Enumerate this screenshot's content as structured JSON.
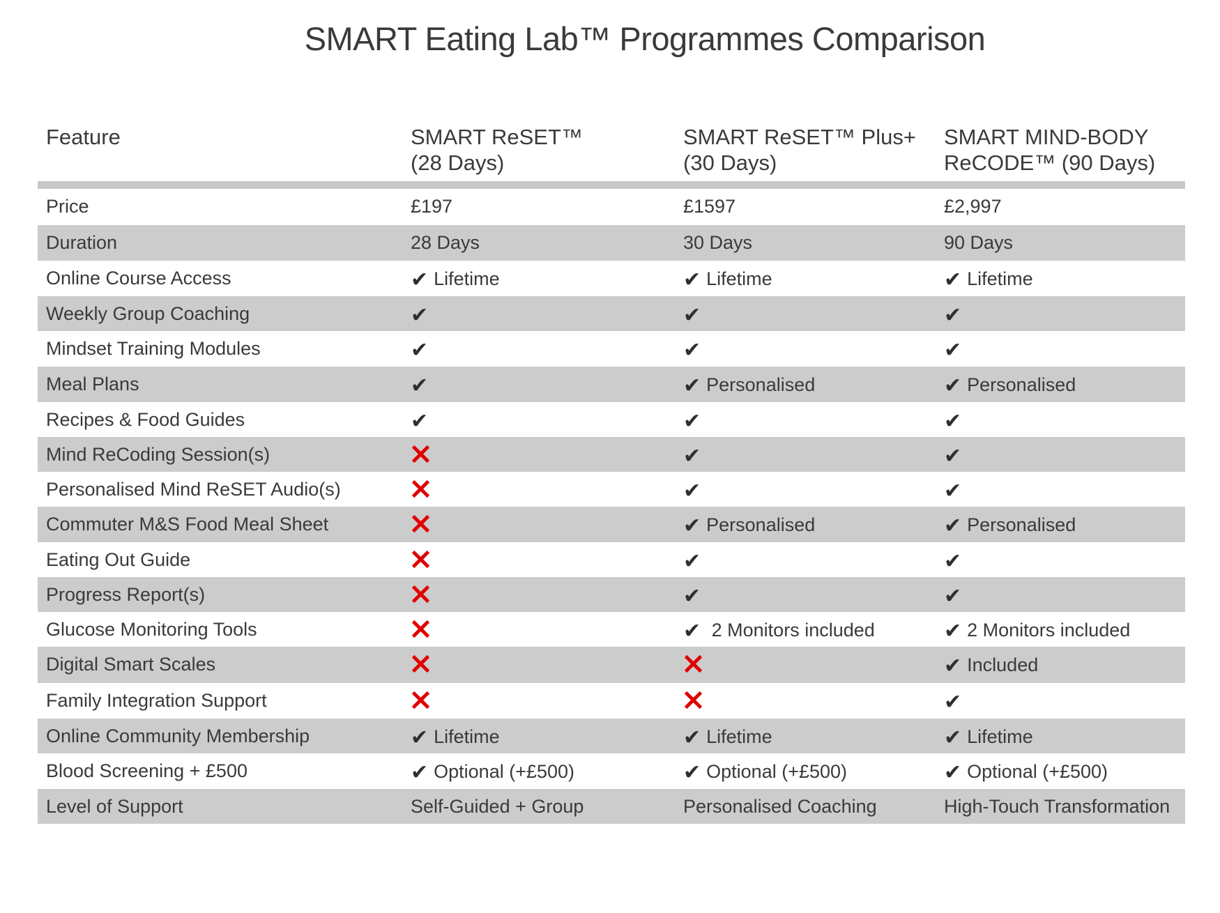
{
  "title": "SMART Eating Lab™ Programmes Comparison",
  "header": {
    "feature": "Feature",
    "col1_line1": "SMART ReSET™",
    "col1_line2": "(28 Days)",
    "col2_line1": "SMART ReSET™ Plus+",
    "col2_line2": "(30 Days)",
    "col3_line1": "SMART MIND-BODY",
    "col3_line2": "ReCODE™  (90 Days)"
  },
  "icons": {
    "check": "check-icon",
    "cross": "cross-icon",
    "check_color": "#2f2f2f",
    "cross_color": "#e00000"
  },
  "colors": {
    "shaded_row": "#cccccc",
    "header_line": "#c8c8c8"
  },
  "rows": [
    {
      "feature": "Price",
      "cells": [
        {
          "mark": "",
          "text": "£197"
        },
        {
          "mark": "",
          "text": "£1597"
        },
        {
          "mark": "",
          "text": "£2,997"
        }
      ]
    },
    {
      "feature": "Duration",
      "cells": [
        {
          "mark": "",
          "text": "28 Days"
        },
        {
          "mark": "",
          "text": "30 Days"
        },
        {
          "mark": "",
          "text": "90 Days"
        }
      ]
    },
    {
      "feature": "Online Course Access",
      "cells": [
        {
          "mark": "check",
          "text": "Lifetime"
        },
        {
          "mark": "check",
          "text": "Lifetime"
        },
        {
          "mark": "check",
          "text": "Lifetime"
        }
      ]
    },
    {
      "feature": "Weekly Group Coaching",
      "cells": [
        {
          "mark": "check",
          "text": ""
        },
        {
          "mark": "check",
          "text": ""
        },
        {
          "mark": "check",
          "text": ""
        }
      ]
    },
    {
      "feature": "Mindset Training Modules",
      "cells": [
        {
          "mark": "check",
          "text": ""
        },
        {
          "mark": "check",
          "text": ""
        },
        {
          "mark": "check",
          "text": ""
        }
      ]
    },
    {
      "feature": "Meal Plans",
      "cells": [
        {
          "mark": "check",
          "text": ""
        },
        {
          "mark": "check",
          "text": "Personalised"
        },
        {
          "mark": "check",
          "text": "Personalised"
        }
      ]
    },
    {
      "feature": "Recipes & Food Guides",
      "cells": [
        {
          "mark": "check",
          "text": ""
        },
        {
          "mark": "check",
          "text": ""
        },
        {
          "mark": "check",
          "text": ""
        }
      ]
    },
    {
      "feature": "Mind ReCoding Session(s)",
      "cells": [
        {
          "mark": "cross",
          "text": ""
        },
        {
          "mark": "check",
          "text": ""
        },
        {
          "mark": "check",
          "text": ""
        }
      ]
    },
    {
      "feature": "Personalised Mind ReSET Audio(s)",
      "cells": [
        {
          "mark": "cross",
          "text": ""
        },
        {
          "mark": "check",
          "text": ""
        },
        {
          "mark": "check",
          "text": ""
        }
      ]
    },
    {
      "feature": "Commuter M&S Food Meal Sheet",
      "cells": [
        {
          "mark": "cross",
          "text": ""
        },
        {
          "mark": "check",
          "text": "Personalised"
        },
        {
          "mark": "check",
          "text": "Personalised"
        }
      ]
    },
    {
      "feature": "Eating Out Guide",
      "cells": [
        {
          "mark": "cross",
          "text": ""
        },
        {
          "mark": "check",
          "text": ""
        },
        {
          "mark": "check",
          "text": ""
        }
      ]
    },
    {
      "feature": "Progress Report(s)",
      "cells": [
        {
          "mark": "cross",
          "text": ""
        },
        {
          "mark": "check",
          "text": ""
        },
        {
          "mark": "check",
          "text": ""
        }
      ]
    },
    {
      "feature": "Glucose Monitoring Tools",
      "cells": [
        {
          "mark": "cross",
          "text": ""
        },
        {
          "mark": "check",
          "text": " 2 Monitors included"
        },
        {
          "mark": "check",
          "text": "2 Monitors included"
        }
      ]
    },
    {
      "feature": "Digital Smart Scales",
      "cells": [
        {
          "mark": "cross",
          "text": ""
        },
        {
          "mark": "cross",
          "text": ""
        },
        {
          "mark": "check",
          "text": "Included"
        }
      ]
    },
    {
      "feature": "Family Integration Support",
      "cells": [
        {
          "mark": "cross",
          "text": ""
        },
        {
          "mark": "cross",
          "text": ""
        },
        {
          "mark": "check",
          "text": ""
        }
      ]
    },
    {
      "feature": "Online Community Membership",
      "cells": [
        {
          "mark": "check",
          "text": "Lifetime"
        },
        {
          "mark": "check",
          "text": "Lifetime"
        },
        {
          "mark": "check",
          "text": "Lifetime"
        }
      ]
    },
    {
      "feature": "Blood Screening + £500",
      "cells": [
        {
          "mark": "check",
          "text": "Optional (+£500)"
        },
        {
          "mark": "check",
          "text": "Optional (+£500)"
        },
        {
          "mark": "check",
          "text": "Optional (+£500)"
        }
      ]
    },
    {
      "feature": "Level of Support",
      "cells": [
        {
          "mark": "",
          "text": "Self-Guided + Group"
        },
        {
          "mark": "",
          "text": "Personalised Coaching"
        },
        {
          "mark": "",
          "text": "High-Touch Transformation"
        }
      ]
    }
  ]
}
